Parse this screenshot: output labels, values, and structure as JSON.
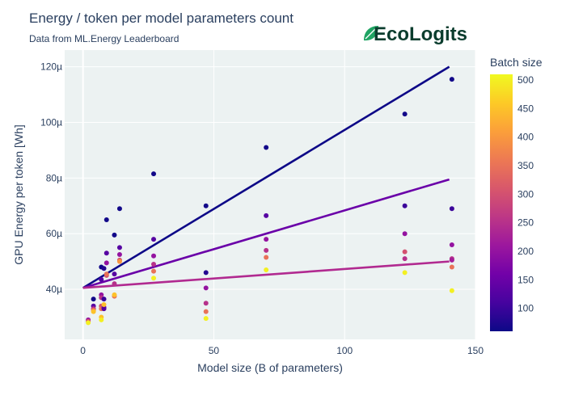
{
  "chart_data": {
    "type": "scatter",
    "title": "Energy / token per model parameters count",
    "subtitle": "Data from ML.Energy Leaderboard",
    "xlabel": "Model size (B of parameters)",
    "ylabel": "GPU Energy per token [Wh]",
    "xlim": [
      -7,
      150
    ],
    "ylim": [
      22,
      126
    ],
    "x_ticks": [
      0,
      50,
      100,
      150
    ],
    "y_ticks": [
      40,
      60,
      80,
      100,
      120
    ],
    "y_tick_labels": [
      "40µ",
      "60µ",
      "80µ",
      "100µ",
      "120µ"
    ],
    "grid": true,
    "colorbar": {
      "title": "Batch size",
      "range": [
        60,
        510
      ],
      "ticks": [
        100,
        150,
        200,
        250,
        300,
        350,
        400,
        450,
        500
      ],
      "colorscale": [
        "#0d0887",
        "#46039f",
        "#7201a8",
        "#9c179e",
        "#bd3786",
        "#d8576b",
        "#ed7953",
        "#fb9f3a",
        "#fdca26",
        "#f0f921"
      ]
    },
    "points": [
      {
        "x": 2,
        "y": 29,
        "batch": 200
      },
      {
        "x": 2,
        "y": 28.5,
        "batch": 300
      },
      {
        "x": 2,
        "y": 28,
        "batch": 500
      },
      {
        "x": 4,
        "y": 36.5,
        "batch": 64
      },
      {
        "x": 4,
        "y": 34,
        "batch": 128
      },
      {
        "x": 4,
        "y": 33,
        "batch": 256
      },
      {
        "x": 4,
        "y": 32.5,
        "batch": 350
      },
      {
        "x": 4,
        "y": 32,
        "batch": 450
      },
      {
        "x": 7,
        "y": 48,
        "batch": 64
      },
      {
        "x": 7,
        "y": 43.5,
        "batch": 128
      },
      {
        "x": 7,
        "y": 38,
        "batch": 200
      },
      {
        "x": 7,
        "y": 37,
        "batch": 256
      },
      {
        "x": 7,
        "y": 34,
        "batch": 300
      },
      {
        "x": 7,
        "y": 33,
        "batch": 350
      },
      {
        "x": 7,
        "y": 30,
        "batch": 450
      },
      {
        "x": 7,
        "y": 29,
        "batch": 500
      },
      {
        "x": 8,
        "y": 47.5,
        "batch": 80
      },
      {
        "x": 8,
        "y": 36.5,
        "batch": 100
      },
      {
        "x": 8,
        "y": 33.5,
        "batch": 150
      },
      {
        "x": 8,
        "y": 33,
        "batch": 128
      },
      {
        "x": 8,
        "y": 34.5,
        "batch": 450
      },
      {
        "x": 9,
        "y": 65,
        "batch": 64
      },
      {
        "x": 9,
        "y": 53,
        "batch": 128
      },
      {
        "x": 9,
        "y": 49.5,
        "batch": 200
      },
      {
        "x": 9,
        "y": 45,
        "batch": 300
      },
      {
        "x": 9,
        "y": 45.5,
        "batch": 350
      },
      {
        "x": 12,
        "y": 59.5,
        "batch": 64
      },
      {
        "x": 12,
        "y": 45.5,
        "batch": 128
      },
      {
        "x": 12,
        "y": 42,
        "batch": 250
      },
      {
        "x": 12,
        "y": 37.5,
        "batch": 350
      },
      {
        "x": 12,
        "y": 38,
        "batch": 450
      },
      {
        "x": 14,
        "y": 69,
        "batch": 64
      },
      {
        "x": 14,
        "y": 55,
        "batch": 128
      },
      {
        "x": 14,
        "y": 52.5,
        "batch": 200
      },
      {
        "x": 14,
        "y": 50.5,
        "batch": 300
      },
      {
        "x": 14,
        "y": 50,
        "batch": 400
      },
      {
        "x": 27,
        "y": 81.5,
        "batch": 64
      },
      {
        "x": 27,
        "y": 58,
        "batch": 128
      },
      {
        "x": 27,
        "y": 52,
        "batch": 200
      },
      {
        "x": 27,
        "y": 49,
        "batch": 250
      },
      {
        "x": 27,
        "y": 46.5,
        "batch": 350
      },
      {
        "x": 27,
        "y": 44,
        "batch": 500
      },
      {
        "x": 47,
        "y": 70,
        "batch": 64
      },
      {
        "x": 47,
        "y": 46,
        "batch": 80
      },
      {
        "x": 47,
        "y": 40.5,
        "batch": 200
      },
      {
        "x": 47,
        "y": 35,
        "batch": 250
      },
      {
        "x": 47,
        "y": 32,
        "batch": 350
      },
      {
        "x": 47,
        "y": 29.5,
        "batch": 500
      },
      {
        "x": 70,
        "y": 91,
        "batch": 64
      },
      {
        "x": 70,
        "y": 66.5,
        "batch": 128
      },
      {
        "x": 70,
        "y": 58,
        "batch": 200
      },
      {
        "x": 70,
        "y": 54,
        "batch": 250
      },
      {
        "x": 70,
        "y": 51.5,
        "batch": 350
      },
      {
        "x": 70,
        "y": 47,
        "batch": 500
      },
      {
        "x": 123,
        "y": 103,
        "batch": 64
      },
      {
        "x": 123,
        "y": 70,
        "batch": 100
      },
      {
        "x": 123,
        "y": 60,
        "batch": 200
      },
      {
        "x": 123,
        "y": 53.5,
        "batch": 300
      },
      {
        "x": 123,
        "y": 51,
        "batch": 250
      },
      {
        "x": 123,
        "y": 46,
        "batch": 500
      },
      {
        "x": 141,
        "y": 115.5,
        "batch": 64
      },
      {
        "x": 141,
        "y": 69,
        "batch": 100
      },
      {
        "x": 141,
        "y": 56,
        "batch": 200
      },
      {
        "x": 141,
        "y": 51,
        "batch": 250
      },
      {
        "x": 141,
        "y": 50.5,
        "batch": 220
      },
      {
        "x": 141,
        "y": 48,
        "batch": 350
      },
      {
        "x": 141,
        "y": 39.5,
        "batch": 500
      }
    ],
    "lines": [
      {
        "x": [
          0,
          140
        ],
        "y": [
          40.5,
          120
        ],
        "color": "#0d0887"
      },
      {
        "x": [
          0,
          140
        ],
        "y": [
          40.5,
          79.5
        ],
        "color": "#6a00a8"
      },
      {
        "x": [
          0,
          140
        ],
        "y": [
          40.5,
          50
        ],
        "color": "#b12a90"
      }
    ]
  },
  "logo": {
    "text": "EcoLogits",
    "leaf_color": "#1fa463",
    "text_color": "#0b3d2e"
  },
  "colors": {
    "plot_bg": "#ecf2f2",
    "grid": "#ffffff",
    "text": "#2a3f5f"
  }
}
